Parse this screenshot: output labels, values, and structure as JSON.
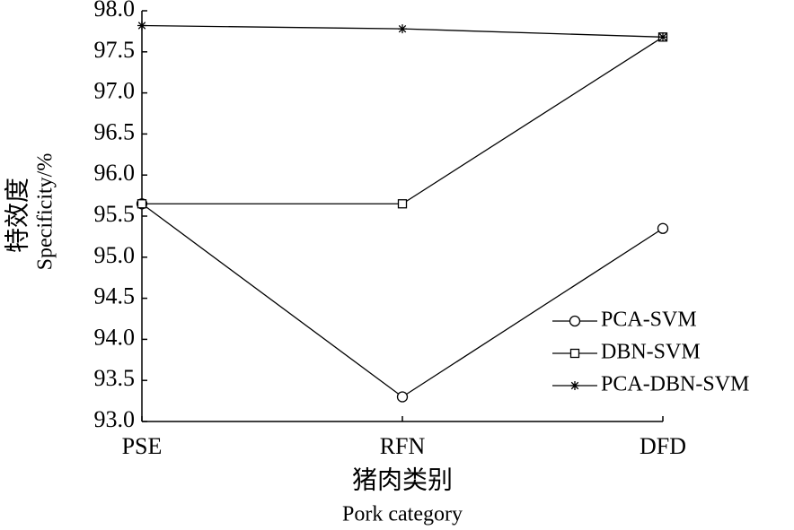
{
  "chart_data": {
    "type": "line",
    "x_label": [
      "猪肉类别",
      "Pork category"
    ],
    "y_label": [
      "特效度",
      "Specificity/%"
    ],
    "categories": [
      "PSE",
      "RFN",
      "DFD"
    ],
    "series": [
      {
        "name": "PCA-SVM",
        "color": "#000000",
        "marker": "circle",
        "values": [
          95.65,
          93.3,
          95.35
        ]
      },
      {
        "name": "DBN-SVM",
        "color": "#000000",
        "marker": "square",
        "values": [
          95.65,
          95.65,
          97.68
        ]
      },
      {
        "name": "PCA-DBN-SVM",
        "color": "#000000",
        "marker": "star",
        "values": [
          97.82,
          97.78,
          97.68
        ]
      }
    ],
    "ylim": [
      93,
      98
    ],
    "yticks": [
      {
        "value": 93,
        "label": "93.0"
      },
      93.5,
      {
        "value": 94,
        "label": "94.0"
      },
      94.5,
      {
        "value": 95,
        "label": "95.0"
      },
      95.5,
      {
        "value": 96,
        "label": "96.0"
      },
      96.5,
      {
        "value": 97,
        "label": "97.0"
      },
      97.5,
      {
        "value": 98,
        "label": "98.0"
      }
    ],
    "grid": false,
    "legend": "right"
  }
}
